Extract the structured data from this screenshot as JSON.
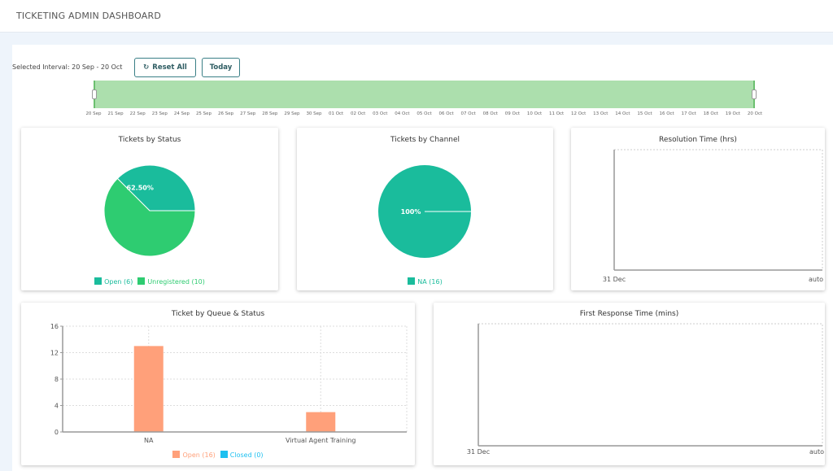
{
  "header": {
    "title": "TICKETING ADMIN DASHBOARD"
  },
  "toolbar": {
    "interval_label": "Selected Interval: 20 Sep - 20 Oct",
    "reset_label": "Reset All",
    "today_label": "Today",
    "reset_icon": "refresh-icon"
  },
  "range_slider": {
    "start": "20 Sep",
    "end": "20 Oct",
    "selected_fraction": [
      0,
      1
    ],
    "color": "#acdfad",
    "ticks": [
      "20 Sep",
      "21 Sep",
      "22 Sep",
      "23 Sep",
      "24 Sep",
      "25 Sep",
      "26 Sep",
      "27 Sep",
      "28 Sep",
      "29 Sep",
      "30 Sep",
      "01 Oct",
      "02 Oct",
      "03 Oct",
      "04 Oct",
      "05 Oct",
      "06 Oct",
      "07 Oct",
      "08 Oct",
      "09 Oct",
      "10 Oct",
      "11 Oct",
      "12 Oct",
      "13 Oct",
      "14 Oct",
      "15 Oct",
      "16 Oct",
      "17 Oct",
      "18 Oct",
      "19 Oct",
      "20 Oct"
    ]
  },
  "chart_data": [
    {
      "type": "pie",
      "title": "Tickets by Status",
      "slices": [
        {
          "name": "Open",
          "value": 6,
          "label": "37.50%",
          "legend": "Open (6)",
          "color": "#1abc9c"
        },
        {
          "name": "Unregistered",
          "value": 10,
          "label": "62.50%",
          "legend": "Unregistered (10)",
          "color": "#2ecc71"
        }
      ]
    },
    {
      "type": "pie",
      "title": "Tickets by Channel",
      "slices": [
        {
          "name": "NA",
          "value": 16,
          "label": "100%",
          "legend": "NA (16)",
          "color": "#1abc9c"
        }
      ]
    },
    {
      "type": "line",
      "title": "Resolution Time (hrs)",
      "x_tick_labels": [
        "31 Dec",
        "auto"
      ],
      "series": []
    },
    {
      "type": "bar",
      "title": "Ticket by Queue & Status",
      "categories": [
        "NA",
        "Virtual Agent Training"
      ],
      "ylim": [
        0,
        16
      ],
      "yticks": [
        0,
        4,
        8,
        12,
        16
      ],
      "grid": true,
      "series": [
        {
          "name": "Open",
          "legend": "Open (16)",
          "values": [
            13,
            3
          ],
          "color": "#ffa07a"
        },
        {
          "name": "Closed",
          "legend": "Closed (0)",
          "values": [
            0,
            0
          ],
          "color": "#1ec0f0"
        }
      ]
    },
    {
      "type": "line",
      "title": "First Response Time (mins)",
      "x_tick_labels": [
        "31 Dec",
        "auto"
      ],
      "series": []
    }
  ]
}
